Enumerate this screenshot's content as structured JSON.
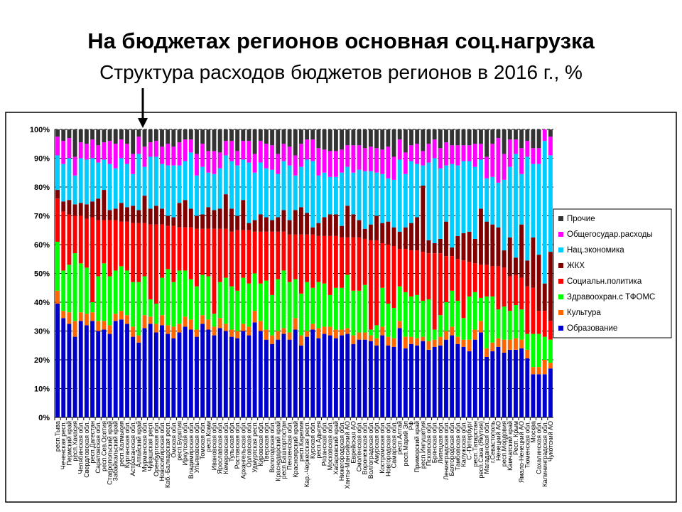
{
  "title": "На бюджетах регионов основная соц.нагрузка",
  "subtitle": "Структура расходов бюджетов регионов в 2016 г., %",
  "chart_data": {
    "type": "bar",
    "stacked": true,
    "title": "Структура расходов бюджетов регионов в 2016 г., %",
    "xlabel": "",
    "ylabel": "",
    "ylim": [
      0,
      100
    ],
    "yticks": [
      "0%",
      "10%",
      "20%",
      "30%",
      "40%",
      "50%",
      "60%",
      "70%",
      "80%",
      "90%",
      "100%"
    ],
    "grid": true,
    "legend_position": "right",
    "annotation": "arrow pointing to Мурманская обл.",
    "series": [
      {
        "name": "Образование",
        "color": "#0000cc"
      },
      {
        "name": "Культура",
        "color": "#ff6600"
      },
      {
        "name": "Здравоохран.с ТФОМС",
        "color": "#00ff00"
      },
      {
        "name": "Социальн.политика",
        "color": "#ff0000"
      },
      {
        "name": "ЖКХ",
        "color": "#800000"
      },
      {
        "name": "Нац.экономика",
        "color": "#00ccff"
      },
      {
        "name": "Общегосудар.расходы",
        "color": "#ff00ff"
      },
      {
        "name": "Прочие",
        "color": "#333333"
      }
    ],
    "legend_order": [
      "Прочие",
      "Общегосудар.расходы",
      "Нац.экономика",
      "ЖКХ",
      "Социальн.политика",
      "Здравоохран.с ТФОМС",
      "Культура",
      "Образование"
    ],
    "categories": [
      "респ.Тыва",
      "Чеченская респ.",
      "Пермский край",
      "респ.Хакасия",
      "Челябинская обл.",
      "Свердловская обл.",
      "респ.Дагестан",
      "Саратовская обл.",
      "респ.Сев.Осетия",
      "Ставропольский край",
      "Забайкальский край",
      "респ.Калмыкия",
      "Курганская обл.",
      "Астраханская обл.",
      "Алтайский край",
      "Мурманская обл.",
      "Чувашская респ.",
      "Оренбургская обл.",
      "Новосибирская обл.",
      "Каб.-Балкарская респ.",
      "Омская обл.",
      "респ.Бурятия",
      "Иркутская обл.",
      "Владимирская обл.",
      "Ульяновская обл.",
      "Томская обл.",
      "респ.Коми",
      "Ивановская обл.",
      "Ярославская обл.",
      "Кемеровская обл.",
      "Тульская обл.",
      "Ростовская обл.",
      "Архангельская обл.",
      "Орловская обл.",
      "Удмуртская респ.",
      "Кировская обл.",
      "Тверская обл.",
      "Вологодская обл.",
      "Краснодарский край",
      "респ.Башкортостан",
      "Пензенская обл.",
      "Красноярский край",
      "респ.Карелия",
      "Кар.-Черкесская респ.",
      "Курская обл.",
      "респ.Адыгея",
      "Рязанская обл.",
      "Московская обл.",
      "Хабаровский край",
      "Нижегородская обл.",
      "Ханты-Мансийский АО",
      "Еврейская АО",
      "Смоленская обл.",
      "Воронежская обл.",
      "Волгоградская обл.",
      "Амурская обл.",
      "Костромская обл.",
      "Новгородская обл.",
      "Самарская обл.",
      "респ.Алтай",
      "респ.Марий Эл",
      "РФ",
      "Приморский край",
      "респ.Ингушетия",
      "Псковская обл.",
      "Брянская обл.",
      "Липецкая обл.",
      "Ленинградская обл.",
      "Белгородская обл.",
      "Тамбовская обл.",
      "Калужская обл.",
      "С.-Петербург",
      "респ.Татарстан",
      "респ.Саха (Якутия)",
      "Магаданская обл.",
      "г.Севастополь",
      "Ненецкий АО",
      "респ.Мордовия",
      "Камчатский край",
      "Респ. Крым",
      "Ямало-Ненецкий АО",
      "Тюменская обл.",
      "Москва",
      "Сахалинская обл.",
      "Калининградская обл.",
      "Чукотский АО"
    ],
    "cumulative_boundaries_note": "each row: cumulative % tops of Образование, Культура, Здравоохран., Соц.политика, ЖКХ, Нац.экономика, Общегосудар.; Прочие fills to 100",
    "cumulative": [
      [
        39.5,
        44,
        61,
        76,
        79,
        91,
        97.5
      ],
      [
        34.5,
        37,
        51,
        71.5,
        75,
        88,
        96
      ],
      [
        32.5,
        36.5,
        53,
        70.5,
        75.5,
        90,
        97
      ],
      [
        28,
        33.5,
        57,
        70,
        74,
        84,
        90.5
      ],
      [
        33.5,
        36.5,
        53.5,
        70,
        74.5,
        90,
        95.5
      ],
      [
        32,
        36,
        52,
        69,
        74,
        89.5,
        95
      ],
      [
        33.5,
        36.5,
        40,
        69.5,
        75,
        90,
        96.5
      ],
      [
        30,
        33.5,
        49,
        68.5,
        76,
        88.5,
        94.5
      ],
      [
        30.5,
        33.5,
        53.5,
        68.5,
        79,
        89.5,
        95.5
      ],
      [
        29,
        32,
        49,
        68.5,
        72,
        88,
        96
      ],
      [
        33.5,
        36,
        51,
        68.5,
        72.5,
        86.5,
        95
      ],
      [
        34,
        37,
        52.5,
        68,
        74.5,
        90,
        96.5
      ],
      [
        32.5,
        35.5,
        51,
        68,
        73,
        88,
        95
      ],
      [
        28,
        31.5,
        47,
        67.5,
        73.5,
        84.5,
        91.5
      ],
      [
        26,
        28.5,
        47,
        67.5,
        72,
        91.5,
        97.5
      ],
      [
        31,
        35.5,
        49,
        67.5,
        77,
        87,
        94
      ],
      [
        32.5,
        35,
        41,
        67,
        72.5,
        90.5,
        95.5
      ],
      [
        29.5,
        32.5,
        39.5,
        67,
        73.5,
        90.5,
        96
      ],
      [
        32,
        35.5,
        48.5,
        67,
        72.5,
        88,
        94
      ],
      [
        29,
        32,
        51.5,
        66.5,
        70,
        87.5,
        95
      ],
      [
        27.5,
        31.5,
        47,
        66.5,
        69.5,
        87.5,
        94
      ],
      [
        29.5,
        32.5,
        51,
        66,
        74.5,
        87.5,
        95.5
      ],
      [
        31.5,
        35,
        51,
        66,
        75.5,
        89,
        96.5
      ],
      [
        30.5,
        34,
        48,
        66,
        72.5,
        92,
        96.5
      ],
      [
        28,
        30.5,
        45.5,
        65.5,
        70,
        84,
        91.5
      ],
      [
        32.5,
        35.5,
        49.5,
        65.5,
        70.5,
        87,
        95
      ],
      [
        30.5,
        34,
        49,
        65.5,
        73,
        85,
        92.5
      ],
      [
        28.5,
        31.5,
        36,
        65.5,
        72,
        84.5,
        92.5
      ],
      [
        31,
        34.5,
        47,
        65.5,
        72.5,
        86.5,
        92
      ],
      [
        30,
        32.5,
        48.5,
        65.5,
        77.5,
        91,
        96
      ],
      [
        28,
        30.5,
        45.5,
        64.5,
        72.5,
        89,
        96
      ],
      [
        27.5,
        30,
        44,
        65,
        70,
        87.5,
        92.5
      ],
      [
        30,
        32.5,
        48.5,
        65,
        75.5,
        89.5,
        96
      ],
      [
        28.5,
        31.5,
        46.5,
        65,
        67.5,
        88.5,
        96
      ],
      [
        33,
        37,
        50,
        64.5,
        68.5,
        85,
        91.5
      ],
      [
        30,
        33.5,
        46.5,
        64.5,
        70.5,
        88.5,
        96
      ],
      [
        27,
        30.5,
        47.5,
        64.5,
        69.5,
        86.5,
        95
      ],
      [
        25.5,
        28.5,
        42.5,
        64.5,
        68.5,
        86,
        94.5
      ],
      [
        27,
        30,
        48,
        64.5,
        69.5,
        84.5,
        91.5
      ],
      [
        29,
        31,
        51,
        64.5,
        72,
        89,
        95
      ],
      [
        27,
        29.5,
        47,
        63.5,
        68.5,
        87.5,
        94
      ],
      [
        30.5,
        34.5,
        48,
        63.5,
        72,
        84,
        91
      ],
      [
        25,
        28.5,
        43,
        63.5,
        73,
        87,
        95
      ],
      [
        28,
        30,
        47,
        63.5,
        71,
        89.5,
        96.5
      ],
      [
        30.5,
        32.5,
        45,
        63.5,
        66,
        89,
        96.5
      ],
      [
        27.5,
        31,
        47,
        63,
        67.5,
        84,
        93.5
      ],
      [
        29,
        31.5,
        46.5,
        63,
        69.5,
        85,
        93
      ],
      [
        28.5,
        31.5,
        42.5,
        63,
        70.5,
        83.5,
        92.5
      ],
      [
        27.5,
        30.5,
        45,
        63,
        70.5,
        83.5,
        92.5
      ],
      [
        28.5,
        30.5,
        45,
        62.5,
        66.5,
        85,
        93
      ],
      [
        29,
        31,
        49.5,
        62.5,
        73.5,
        87,
        94.5
      ],
      [
        25.5,
        28.5,
        44,
        62.5,
        70.5,
        85,
        94.5
      ],
      [
        27,
        29.5,
        44,
        62.5,
        68.5,
        86,
        94.5
      ],
      [
        27,
        29.5,
        46,
        62,
        65.5,
        85.5,
        93.5
      ],
      [
        26.5,
        28.5,
        30.5,
        61.5,
        67,
        85.5,
        94
      ],
      [
        25,
        27.5,
        32,
        61.5,
        70,
        85,
        93.5
      ],
      [
        28.5,
        31.5,
        45,
        60.5,
        67.5,
        84.5,
        93
      ],
      [
        25,
        28,
        39.5,
        60,
        68,
        83,
        94
      ],
      [
        24.5,
        27.5,
        38,
        59.5,
        66,
        82.5,
        90.5
      ],
      [
        31,
        33.5,
        45.5,
        58.5,
        64.5,
        89.5,
        96.5
      ],
      [
        24,
        28,
        43.5,
        58.5,
        66,
        84.5,
        92
      ],
      [
        25.5,
        28,
        42,
        58,
        67.5,
        89,
        94.5
      ],
      [
        25,
        27.5,
        42.5,
        58,
        69.5,
        88,
        95
      ],
      [
        26.5,
        28,
        40.5,
        57.5,
        80.5,
        87.5,
        92.5
      ],
      [
        23.5,
        26.5,
        41,
        57,
        61.5,
        88.5,
        95
      ],
      [
        24.5,
        27,
        30.5,
        57,
        60.5,
        90,
        96.5
      ],
      [
        25,
        28,
        35.5,
        57,
        62,
        86.5,
        93.5
      ],
      [
        27,
        30,
        40,
        56,
        68,
        87.5,
        95.5
      ],
      [
        28.5,
        31.5,
        44,
        56,
        59,
        88,
        94.5
      ],
      [
        25.5,
        28,
        40.5,
        55,
        63,
        87.5,
        94.5
      ],
      [
        24.5,
        27,
        34.5,
        54.5,
        64,
        89,
        94.5
      ],
      [
        23,
        27,
        42,
        54,
        64.5,
        89,
        94.5
      ],
      [
        27,
        30.5,
        43.5,
        53.5,
        62,
        87,
        95
      ],
      [
        29.5,
        33.5,
        41.5,
        53,
        72.5,
        89.5,
        95
      ],
      [
        21,
        24,
        42,
        53,
        68,
        83,
        90.5
      ],
      [
        23,
        26,
        42,
        52.5,
        67,
        83.5,
        95
      ],
      [
        24.5,
        27.5,
        37.5,
        52.5,
        66,
        81.5,
        97
      ],
      [
        22.5,
        27,
        38.5,
        52,
        58,
        82.5,
        91.5
      ],
      [
        23.5,
        27,
        37,
        49,
        62.5,
        87,
        96.5
      ],
      [
        23.5,
        27.5,
        39,
        49.5,
        55.5,
        91.5,
        96.5
      ],
      [
        24,
        27,
        37.5,
        48.5,
        67,
        84.5,
        93.5
      ],
      [
        20.5,
        23.5,
        29,
        45.5,
        54.5,
        90.5,
        96
      ],
      [
        15,
        17.5,
        29,
        45,
        62.5,
        88,
        93.5
      ],
      [
        15,
        17.5,
        29,
        37,
        56.5,
        88,
        93.5
      ],
      [
        15,
        20,
        28,
        37,
        46.5,
        96,
        100
      ],
      [
        17,
        19,
        27,
        33.5,
        57.5,
        91,
        97.5
      ]
    ]
  }
}
